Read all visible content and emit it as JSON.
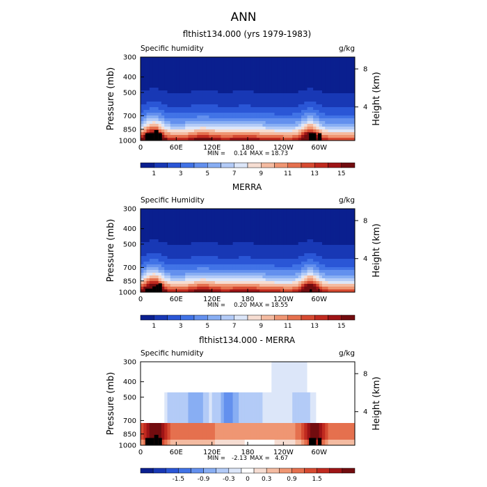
{
  "page_title": "ANN",
  "chart_data": [
    {
      "type": "heatmap",
      "title": "flthist134.000 (yrs 1979-1983)",
      "left_label": "Specific humidity",
      "units": "g/kg",
      "ylabel": "Pressure (mb)",
      "ylabel_right": "Height (km)",
      "yticks": [
        "300",
        "400",
        "500",
        "700",
        "850",
        "1000"
      ],
      "yticks_right": [
        "8",
        "4"
      ],
      "xticks": [
        "0",
        "60E",
        "120E",
        "180",
        "120W",
        "60W"
      ],
      "stats": {
        "min_label": "MIN =",
        "min": "0.14",
        "max_label": "MAX =",
        "max": "18.73"
      },
      "colorbar": {
        "labels": [
          "1",
          "3",
          "5",
          "7",
          "9",
          "11",
          "13",
          "15"
        ],
        "colors": [
          "#0a1f8f",
          "#1838b5",
          "#2a56d6",
          "#4173e6",
          "#6390ee",
          "#88aef3",
          "#b3cbf7",
          "#dce6f9",
          "#f6ddd2",
          "#f4bba1",
          "#ef9673",
          "#e5704e",
          "#d64a31",
          "#c02a1f",
          "#9e1416",
          "#720c0f"
        ]
      },
      "field": "mean",
      "topo_blocks": [
        {
          "lon0": 8,
          "lon1": 23,
          "p0": 900
        },
        {
          "lon0": 23,
          "lon1": 30,
          "p0": 860
        },
        {
          "lon0": 30,
          "lon1": 36,
          "p0": 900
        },
        {
          "lon0": 283,
          "lon1": 295,
          "p0": 900
        },
        {
          "lon0": 298,
          "lon1": 304,
          "p0": 900
        }
      ]
    },
    {
      "type": "heatmap",
      "title": "MERRA",
      "left_label": "Specific Humidity",
      "units": "g/kg",
      "ylabel": "Pressure (mb)",
      "ylabel_right": "Height (km)",
      "yticks": [
        "300",
        "400",
        "500",
        "700",
        "850",
        "1000"
      ],
      "yticks_right": [
        "8",
        "4"
      ],
      "xticks": [
        "0",
        "60E",
        "120E",
        "180",
        "120W",
        "60W"
      ],
      "stats": {
        "min_label": "MIN =",
        "min": "0.20",
        "max_label": "MAX =",
        "max": "18.55"
      },
      "colorbar": {
        "labels": [
          "1",
          "3",
          "5",
          "7",
          "9",
          "11",
          "13",
          "15"
        ],
        "colors": [
          "#0a1f8f",
          "#1838b5",
          "#2a56d6",
          "#4173e6",
          "#6390ee",
          "#88aef3",
          "#b3cbf7",
          "#dce6f9",
          "#f6ddd2",
          "#f4bba1",
          "#ef9673",
          "#e5704e",
          "#d64a31",
          "#c02a1f",
          "#9e1416",
          "#720c0f"
        ]
      },
      "field": "mean",
      "topo_blocks": [
        {
          "lon0": 8,
          "lon1": 20,
          "p0": 950
        },
        {
          "lon0": 20,
          "lon1": 26,
          "p0": 920
        },
        {
          "lon0": 26,
          "lon1": 30,
          "p0": 900
        },
        {
          "lon0": 30,
          "lon1": 36,
          "p0": 880
        },
        {
          "lon0": 284,
          "lon1": 288,
          "p0": 960
        }
      ]
    },
    {
      "type": "heatmap",
      "title": "flthist134.000 - MERRA",
      "left_label": "Specific humidity",
      "units": "g/kg",
      "ylabel": "Pressure (mb)",
      "ylabel_right": "Height (km)",
      "yticks": [
        "300",
        "400",
        "500",
        "700",
        "850",
        "1000"
      ],
      "yticks_right": [
        "8",
        "4"
      ],
      "xticks": [
        "0",
        "60E",
        "120E",
        "180",
        "120W",
        "60W"
      ],
      "stats": {
        "min_label": "MIN =",
        "min": "-2.13",
        "max_label": "MAX =",
        "max": "4.67"
      },
      "colorbar": {
        "labels": [
          "-1.5",
          "-0.9",
          "-0.3",
          "0",
          "0.3",
          "0.9",
          "1.5"
        ],
        "colors": [
          "#0a1f8f",
          "#1838b5",
          "#2a56d6",
          "#4173e6",
          "#6390ee",
          "#88aef3",
          "#b3cbf7",
          "#dce6f9",
          "#ffffff",
          "#f6ddd2",
          "#f4bba1",
          "#ef9673",
          "#e5704e",
          "#d64a31",
          "#c02a1f",
          "#9e1416",
          "#720c0f"
        ]
      },
      "field": "difference",
      "topo_blocks": [
        {
          "lon0": 8,
          "lon1": 23,
          "p0": 900
        },
        {
          "lon0": 23,
          "lon1": 30,
          "p0": 860
        },
        {
          "lon0": 30,
          "lon1": 36,
          "p0": 900
        },
        {
          "lon0": 283,
          "lon1": 295,
          "p0": 900
        },
        {
          "lon0": 298,
          "lon1": 304,
          "p0": 900
        }
      ]
    }
  ]
}
